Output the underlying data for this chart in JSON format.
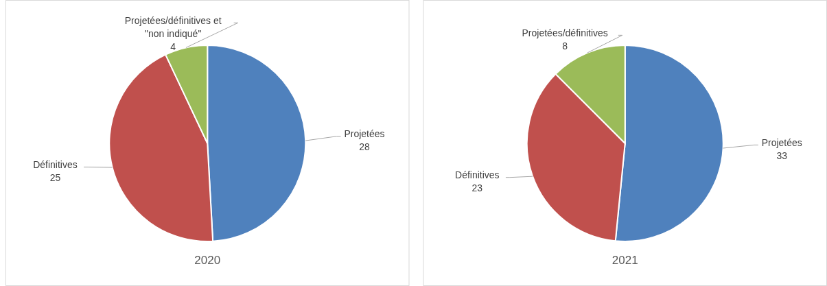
{
  "chart_data": [
    {
      "type": "pie",
      "title": "2020",
      "categories": [
        "Projetées",
        "Définitives",
        "Projetées/définitives et \"non indiqué\""
      ],
      "values": [
        28,
        25,
        4
      ],
      "colors": [
        "#4f81bd",
        "#c0504d",
        "#9bbb59"
      ],
      "data_labels": true
    },
    {
      "type": "pie",
      "title": "2021",
      "categories": [
        "Projetées",
        "Définitives",
        "Projetées/définitives"
      ],
      "values": [
        33,
        23,
        8
      ],
      "colors": [
        "#4f81bd",
        "#c0504d",
        "#9bbb59"
      ],
      "data_labels": true
    }
  ]
}
